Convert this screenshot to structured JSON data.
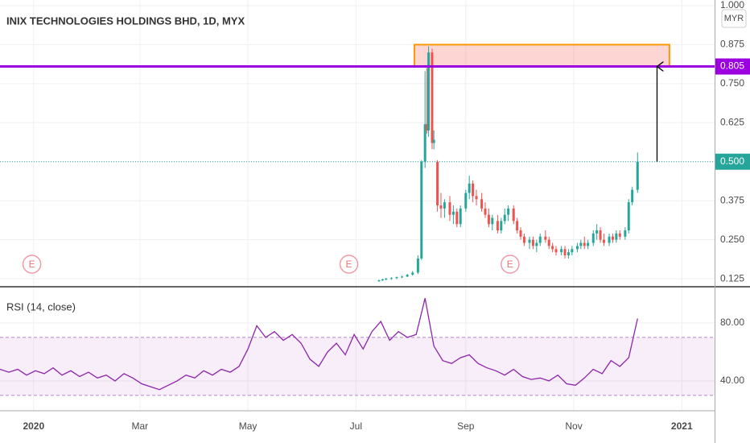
{
  "chart_data": [
    {
      "type": "candlestick",
      "title": "INIX TECHNOLOGIES HOLDINGS BHD, 1D, MYX",
      "currency": "MYR",
      "up_color": "#26a69a",
      "down_color": "#ef5350",
      "xlim": [
        -19,
        384.5
      ],
      "xticks": [
        {
          "value": 0,
          "label": "2020"
        },
        {
          "value": 60,
          "label": "Mar"
        },
        {
          "value": 121,
          "label": "May"
        },
        {
          "value": 182,
          "label": "Jul"
        },
        {
          "value": 244,
          "label": "Sep"
        },
        {
          "value": 305,
          "label": "Nov"
        },
        {
          "value": 366,
          "label": "2021"
        }
      ],
      "ylim": [
        0.102,
        1.018
      ],
      "yticks": [
        {
          "value": 0.125,
          "label": "0.125"
        },
        {
          "value": 0.25,
          "label": "0.250"
        },
        {
          "value": 0.375,
          "label": "0.375"
        },
        {
          "value": 0.5,
          "label": "0.500"
        },
        {
          "value": 0.625,
          "label": "0.625"
        },
        {
          "value": 0.75,
          "label": "0.750"
        },
        {
          "value": 0.875,
          "label": "0.875"
        },
        {
          "value": 1,
          "label": "1.000"
        }
      ],
      "grid": true,
      "x": [
        195,
        197,
        199,
        202,
        205,
        208,
        211,
        214,
        217,
        219,
        221,
        222,
        223,
        225,
        226,
        228,
        230,
        232,
        235,
        237,
        239,
        241,
        244,
        246,
        248,
        250,
        253,
        255,
        257,
        259,
        262,
        264,
        266,
        268,
        271,
        273,
        275,
        277,
        280,
        282,
        284,
        286,
        289,
        291,
        293,
        295,
        298,
        300,
        302,
        304,
        307,
        309,
        311,
        313,
        316,
        318,
        320,
        322,
        325,
        327,
        329,
        331,
        334,
        336,
        338,
        341
      ],
      "open": [
        0.118,
        0.12,
        0.123,
        0.125,
        0.127,
        0.13,
        0.132,
        0.138,
        0.145,
        0.19,
        0.5,
        0.62,
        0.6,
        0.85,
        0.56,
        0.5,
        0.36,
        0.35,
        0.37,
        0.33,
        0.34,
        0.3,
        0.35,
        0.4,
        0.43,
        0.39,
        0.38,
        0.35,
        0.33,
        0.3,
        0.31,
        0.28,
        0.31,
        0.33,
        0.35,
        0.31,
        0.28,
        0.26,
        0.24,
        0.25,
        0.23,
        0.24,
        0.26,
        0.25,
        0.23,
        0.22,
        0.21,
        0.22,
        0.2,
        0.21,
        0.22,
        0.23,
        0.24,
        0.23,
        0.24,
        0.27,
        0.28,
        0.25,
        0.24,
        0.26,
        0.25,
        0.27,
        0.26,
        0.28,
        0.37,
        0.41
      ],
      "high": [
        0.122,
        0.125,
        0.128,
        0.13,
        0.132,
        0.135,
        0.14,
        0.15,
        0.2,
        0.505,
        0.79,
        0.8,
        0.87,
        0.862,
        0.6,
        0.505,
        0.4,
        0.38,
        0.39,
        0.36,
        0.35,
        0.36,
        0.41,
        0.455,
        0.44,
        0.41,
        0.4,
        0.37,
        0.35,
        0.33,
        0.33,
        0.32,
        0.35,
        0.36,
        0.36,
        0.32,
        0.29,
        0.27,
        0.26,
        0.26,
        0.25,
        0.27,
        0.28,
        0.26,
        0.24,
        0.23,
        0.23,
        0.23,
        0.22,
        0.23,
        0.24,
        0.25,
        0.26,
        0.25,
        0.28,
        0.3,
        0.29,
        0.27,
        0.27,
        0.27,
        0.28,
        0.28,
        0.29,
        0.38,
        0.42,
        0.53
      ],
      "low": [
        0.115,
        0.118,
        0.12,
        0.122,
        0.124,
        0.127,
        0.13,
        0.135,
        0.14,
        0.185,
        0.48,
        0.59,
        0.58,
        0.54,
        0.54,
        0.34,
        0.32,
        0.32,
        0.31,
        0.3,
        0.29,
        0.29,
        0.34,
        0.38,
        0.37,
        0.36,
        0.34,
        0.32,
        0.29,
        0.28,
        0.27,
        0.27,
        0.3,
        0.31,
        0.3,
        0.27,
        0.25,
        0.23,
        0.22,
        0.22,
        0.21,
        0.23,
        0.24,
        0.22,
        0.21,
        0.2,
        0.2,
        0.19,
        0.19,
        0.2,
        0.21,
        0.22,
        0.22,
        0.22,
        0.23,
        0.25,
        0.24,
        0.23,
        0.23,
        0.24,
        0.24,
        0.25,
        0.25,
        0.27,
        0.36,
        0.4
      ],
      "close": [
        0.12,
        0.123,
        0.125,
        0.127,
        0.13,
        0.132,
        0.138,
        0.145,
        0.19,
        0.5,
        0.62,
        0.6,
        0.85,
        0.56,
        0.57,
        0.36,
        0.35,
        0.37,
        0.33,
        0.34,
        0.3,
        0.35,
        0.4,
        0.43,
        0.39,
        0.38,
        0.35,
        0.33,
        0.3,
        0.32,
        0.28,
        0.31,
        0.33,
        0.35,
        0.31,
        0.28,
        0.26,
        0.24,
        0.25,
        0.23,
        0.24,
        0.26,
        0.25,
        0.23,
        0.22,
        0.21,
        0.22,
        0.2,
        0.21,
        0.22,
        0.23,
        0.24,
        0.23,
        0.24,
        0.27,
        0.28,
        0.25,
        0.24,
        0.26,
        0.25,
        0.27,
        0.26,
        0.28,
        0.37,
        0.41,
        0.5
      ],
      "hlines": [
        {
          "value": 0.805,
          "label": "0.805",
          "color": "#9b00e0"
        },
        {
          "value": 0.5,
          "label": "0.500",
          "color": "#26a69a"
        }
      ],
      "zone": {
        "x": [
          215,
          359
        ],
        "y": [
          0.805,
          0.875
        ]
      },
      "arrow": {
        "x": 352,
        "y": [
          0.5,
          0.805
        ]
      },
      "events": {
        "x": [
          -1,
          178,
          269
        ],
        "label": "E"
      }
    },
    {
      "type": "line",
      "title": "RSI (14, close)",
      "color": "#8e24aa",
      "ylim": [
        19.4,
        104.4
      ],
      "yticks": [
        {
          "value": 40,
          "label": "40.00"
        },
        {
          "value": 80,
          "label": "80.00"
        }
      ],
      "bands": [
        30,
        70
      ],
      "x": [
        -19,
        -14,
        -9,
        -4,
        1,
        6,
        11,
        16,
        21,
        26,
        31,
        36,
        41,
        46,
        51,
        56,
        61,
        66,
        71,
        76,
        81,
        86,
        91,
        96,
        101,
        106,
        111,
        116,
        121,
        126,
        131,
        136,
        141,
        146,
        151,
        156,
        161,
        166,
        171,
        176,
        181,
        186,
        191,
        196,
        201,
        206,
        211,
        216,
        221,
        226,
        231,
        236,
        241,
        246,
        251,
        256,
        261,
        266,
        271,
        276,
        281,
        286,
        291,
        296,
        301,
        306,
        311,
        316,
        321,
        326,
        331,
        336,
        341
      ],
      "values": [
        48,
        46,
        48,
        44,
        47,
        45,
        49,
        44,
        47,
        43,
        46,
        42,
        44,
        40,
        45,
        42,
        38,
        36,
        34,
        37,
        40,
        44,
        42,
        47,
        44,
        48,
        46,
        50,
        62,
        78,
        70,
        74,
        68,
        72,
        66,
        55,
        50,
        60,
        66,
        58,
        72,
        62,
        74,
        81,
        68,
        74,
        70,
        72,
        97,
        64,
        54,
        52,
        56,
        58,
        52,
        49,
        47,
        44,
        48,
        43,
        41,
        42,
        40,
        44,
        38,
        37,
        42,
        48,
        45,
        54,
        50,
        56,
        83
      ]
    }
  ]
}
